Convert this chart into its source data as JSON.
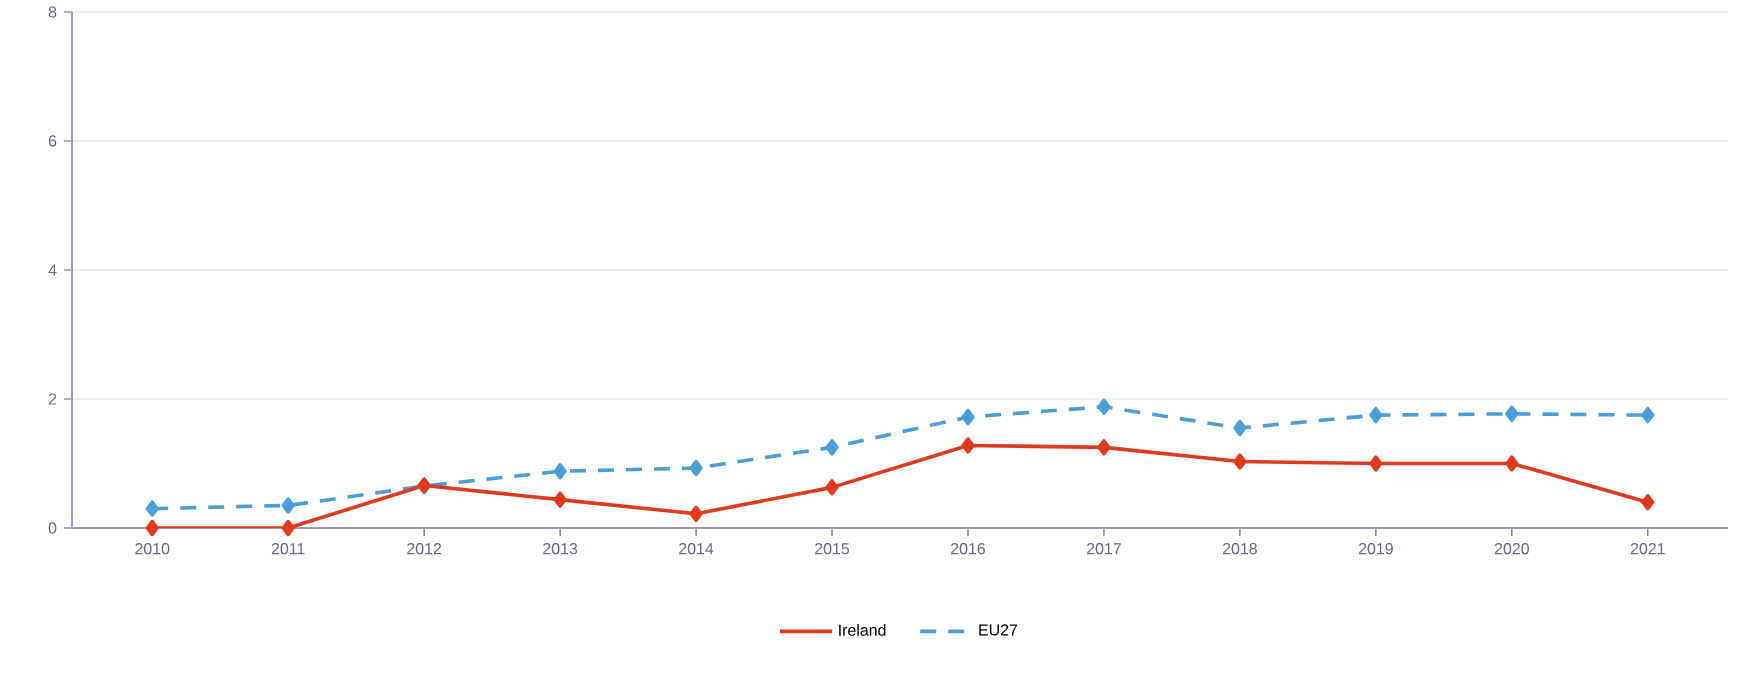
{
  "chart_data": {
    "type": "line",
    "categories": [
      "2010",
      "2011",
      "2012",
      "2013",
      "2014",
      "2015",
      "2016",
      "2017",
      "2018",
      "2019",
      "2020",
      "2021"
    ],
    "series": [
      {
        "name": "Ireland",
        "color": "#e03a1e",
        "line_style": "solid",
        "values": [
          0,
          0,
          0.66,
          0.44,
          0.22,
          0.63,
          1.28,
          1.25,
          1.03,
          1.0,
          1.0,
          0.4
        ]
      },
      {
        "name": "EU27",
        "color": "#4a9fd8",
        "line_style": "dashed",
        "values": [
          0.3,
          0.35,
          0.65,
          0.88,
          0.93,
          1.25,
          1.72,
          1.88,
          1.55,
          1.75,
          1.77,
          1.75
        ]
      }
    ],
    "ylim": [
      0,
      8
    ],
    "yticks": [
      0,
      2,
      4,
      6,
      8
    ],
    "grid": "y",
    "legend": "bottom",
    "marker": "diamond"
  }
}
